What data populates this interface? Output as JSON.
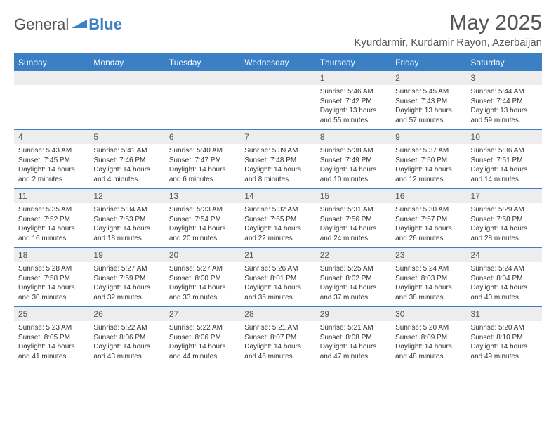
{
  "brand": {
    "part1": "General",
    "part2": "Blue"
  },
  "title": "May 2025",
  "location": "Kyurdarmir, Kurdamir Rayon, Azerbaijan",
  "colors": {
    "accent": "#3b7fc4",
    "header_text": "#555",
    "daynum_bg": "#ededed"
  },
  "days_of_week": [
    "Sunday",
    "Monday",
    "Tuesday",
    "Wednesday",
    "Thursday",
    "Friday",
    "Saturday"
  ],
  "weeks": [
    [
      null,
      null,
      null,
      null,
      {
        "n": "1",
        "sunrise": "Sunrise: 5:46 AM",
        "sunset": "Sunset: 7:42 PM",
        "daylight": "Daylight: 13 hours and 55 minutes."
      },
      {
        "n": "2",
        "sunrise": "Sunrise: 5:45 AM",
        "sunset": "Sunset: 7:43 PM",
        "daylight": "Daylight: 13 hours and 57 minutes."
      },
      {
        "n": "3",
        "sunrise": "Sunrise: 5:44 AM",
        "sunset": "Sunset: 7:44 PM",
        "daylight": "Daylight: 13 hours and 59 minutes."
      }
    ],
    [
      {
        "n": "4",
        "sunrise": "Sunrise: 5:43 AM",
        "sunset": "Sunset: 7:45 PM",
        "daylight": "Daylight: 14 hours and 2 minutes."
      },
      {
        "n": "5",
        "sunrise": "Sunrise: 5:41 AM",
        "sunset": "Sunset: 7:46 PM",
        "daylight": "Daylight: 14 hours and 4 minutes."
      },
      {
        "n": "6",
        "sunrise": "Sunrise: 5:40 AM",
        "sunset": "Sunset: 7:47 PM",
        "daylight": "Daylight: 14 hours and 6 minutes."
      },
      {
        "n": "7",
        "sunrise": "Sunrise: 5:39 AM",
        "sunset": "Sunset: 7:48 PM",
        "daylight": "Daylight: 14 hours and 8 minutes."
      },
      {
        "n": "8",
        "sunrise": "Sunrise: 5:38 AM",
        "sunset": "Sunset: 7:49 PM",
        "daylight": "Daylight: 14 hours and 10 minutes."
      },
      {
        "n": "9",
        "sunrise": "Sunrise: 5:37 AM",
        "sunset": "Sunset: 7:50 PM",
        "daylight": "Daylight: 14 hours and 12 minutes."
      },
      {
        "n": "10",
        "sunrise": "Sunrise: 5:36 AM",
        "sunset": "Sunset: 7:51 PM",
        "daylight": "Daylight: 14 hours and 14 minutes."
      }
    ],
    [
      {
        "n": "11",
        "sunrise": "Sunrise: 5:35 AM",
        "sunset": "Sunset: 7:52 PM",
        "daylight": "Daylight: 14 hours and 16 minutes."
      },
      {
        "n": "12",
        "sunrise": "Sunrise: 5:34 AM",
        "sunset": "Sunset: 7:53 PM",
        "daylight": "Daylight: 14 hours and 18 minutes."
      },
      {
        "n": "13",
        "sunrise": "Sunrise: 5:33 AM",
        "sunset": "Sunset: 7:54 PM",
        "daylight": "Daylight: 14 hours and 20 minutes."
      },
      {
        "n": "14",
        "sunrise": "Sunrise: 5:32 AM",
        "sunset": "Sunset: 7:55 PM",
        "daylight": "Daylight: 14 hours and 22 minutes."
      },
      {
        "n": "15",
        "sunrise": "Sunrise: 5:31 AM",
        "sunset": "Sunset: 7:56 PM",
        "daylight": "Daylight: 14 hours and 24 minutes."
      },
      {
        "n": "16",
        "sunrise": "Sunrise: 5:30 AM",
        "sunset": "Sunset: 7:57 PM",
        "daylight": "Daylight: 14 hours and 26 minutes."
      },
      {
        "n": "17",
        "sunrise": "Sunrise: 5:29 AM",
        "sunset": "Sunset: 7:58 PM",
        "daylight": "Daylight: 14 hours and 28 minutes."
      }
    ],
    [
      {
        "n": "18",
        "sunrise": "Sunrise: 5:28 AM",
        "sunset": "Sunset: 7:58 PM",
        "daylight": "Daylight: 14 hours and 30 minutes."
      },
      {
        "n": "19",
        "sunrise": "Sunrise: 5:27 AM",
        "sunset": "Sunset: 7:59 PM",
        "daylight": "Daylight: 14 hours and 32 minutes."
      },
      {
        "n": "20",
        "sunrise": "Sunrise: 5:27 AM",
        "sunset": "Sunset: 8:00 PM",
        "daylight": "Daylight: 14 hours and 33 minutes."
      },
      {
        "n": "21",
        "sunrise": "Sunrise: 5:26 AM",
        "sunset": "Sunset: 8:01 PM",
        "daylight": "Daylight: 14 hours and 35 minutes."
      },
      {
        "n": "22",
        "sunrise": "Sunrise: 5:25 AM",
        "sunset": "Sunset: 8:02 PM",
        "daylight": "Daylight: 14 hours and 37 minutes."
      },
      {
        "n": "23",
        "sunrise": "Sunrise: 5:24 AM",
        "sunset": "Sunset: 8:03 PM",
        "daylight": "Daylight: 14 hours and 38 minutes."
      },
      {
        "n": "24",
        "sunrise": "Sunrise: 5:24 AM",
        "sunset": "Sunset: 8:04 PM",
        "daylight": "Daylight: 14 hours and 40 minutes."
      }
    ],
    [
      {
        "n": "25",
        "sunrise": "Sunrise: 5:23 AM",
        "sunset": "Sunset: 8:05 PM",
        "daylight": "Daylight: 14 hours and 41 minutes."
      },
      {
        "n": "26",
        "sunrise": "Sunrise: 5:22 AM",
        "sunset": "Sunset: 8:06 PM",
        "daylight": "Daylight: 14 hours and 43 minutes."
      },
      {
        "n": "27",
        "sunrise": "Sunrise: 5:22 AM",
        "sunset": "Sunset: 8:06 PM",
        "daylight": "Daylight: 14 hours and 44 minutes."
      },
      {
        "n": "28",
        "sunrise": "Sunrise: 5:21 AM",
        "sunset": "Sunset: 8:07 PM",
        "daylight": "Daylight: 14 hours and 46 minutes."
      },
      {
        "n": "29",
        "sunrise": "Sunrise: 5:21 AM",
        "sunset": "Sunset: 8:08 PM",
        "daylight": "Daylight: 14 hours and 47 minutes."
      },
      {
        "n": "30",
        "sunrise": "Sunrise: 5:20 AM",
        "sunset": "Sunset: 8:09 PM",
        "daylight": "Daylight: 14 hours and 48 minutes."
      },
      {
        "n": "31",
        "sunrise": "Sunrise: 5:20 AM",
        "sunset": "Sunset: 8:10 PM",
        "daylight": "Daylight: 14 hours and 49 minutes."
      }
    ]
  ]
}
